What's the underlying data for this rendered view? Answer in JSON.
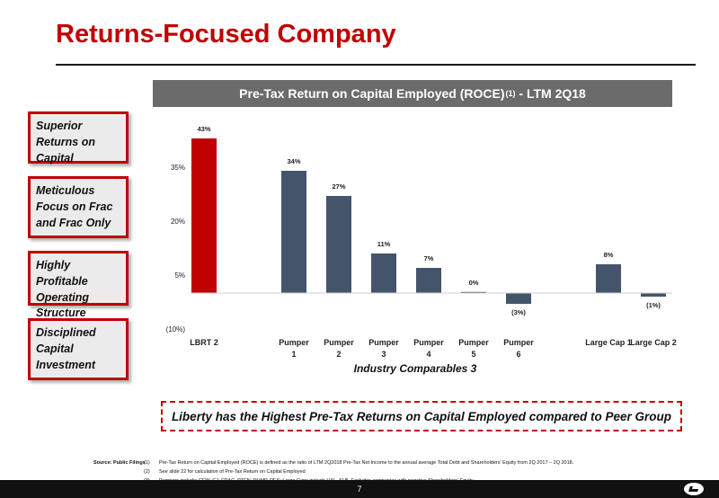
{
  "page": {
    "title": "Returns-Focused Company",
    "page_number": "7"
  },
  "chart_header": {
    "main": "Pre-Tax Return on Capital Employed (ROCE)",
    "superscript": "(1)",
    "suffix": " - LTM 2Q18"
  },
  "sidebar": [
    "Superior Returns on Capital",
    "Meticulous Focus on Frac and Frac Only",
    "Highly Profitable Operating Structure",
    "Disciplined Capital Investment"
  ],
  "callout": "Liberty has the Highest Pre-Tax Returns on Capital Employed compared to Peer Group",
  "source_label": "Source: Public Filings",
  "footnotes": [
    {
      "num": "(1)",
      "text": "Pre-Tax Return on Capital Employed (ROCE) is defined as the ratio of LTM 2Q2018 Pre-Tax Net Income to the annual average Total Debt and Shareholders' Equity from 2Q 2017 – 2Q 2018."
    },
    {
      "num": "(2)",
      "text": "See slide 22 for calculation of Pre-Tax Return on Capital Employed"
    },
    {
      "num": "(3)",
      "text": "Pumpers include: CFW, CJ, FRAC, PTEN, PUMP, RES; Large Caps include HAL, SLB. Excludes companies with negative Shareholders' Equity"
    }
  ],
  "chart_data": {
    "type": "bar",
    "categories": [
      [
        "LBRT 2"
      ],
      [
        "Pumper",
        "1"
      ],
      [
        "Pumper",
        "2"
      ],
      [
        "Pumper",
        "3"
      ],
      [
        "Pumper",
        "4"
      ],
      [
        "Pumper",
        "5"
      ],
      [
        "Pumper",
        "6"
      ],
      [
        "Large Cap 1"
      ],
      [
        "Large Cap 2"
      ]
    ],
    "values": [
      43,
      34,
      27,
      11,
      7,
      0,
      -3,
      8,
      -1
    ],
    "data_labels": [
      "43%",
      "34%",
      "27%",
      "11%",
      "7%",
      "0%",
      "(3%)",
      "8%",
      "(1%)"
    ],
    "y_ticks": [
      35,
      20,
      5,
      -10
    ],
    "y_tick_labels": [
      "35%",
      "20%",
      "5%",
      "(10%)"
    ],
    "ylim": [
      -10,
      43
    ],
    "xlabel": "Industry Comparables 3",
    "colors": {
      "highlight": "#c00000",
      "peer": "#44546a"
    },
    "highlight_index": 0
  }
}
